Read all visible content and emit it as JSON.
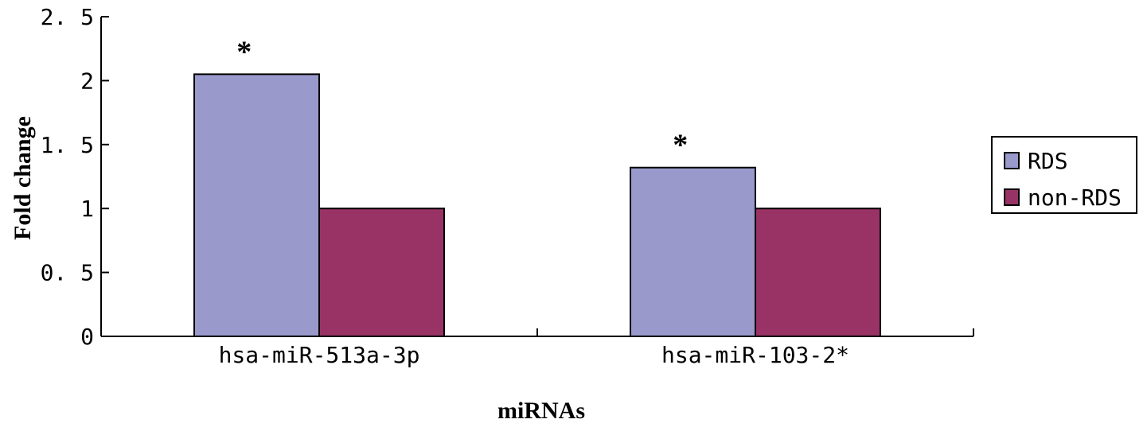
{
  "chart_data": {
    "type": "bar",
    "categories": [
      "hsa-miR-513a-3p",
      "hsa-miR-103-2*"
    ],
    "series": [
      {
        "name": "RDS",
        "values": [
          2.05,
          1.32
        ],
        "color": "#9999cc",
        "annotations": [
          "*",
          "*"
        ]
      },
      {
        "name": "non-RDS",
        "values": [
          1.0,
          1.0
        ],
        "color": "#993366",
        "annotations": [
          "",
          ""
        ]
      }
    ],
    "xlabel": "miRNAs",
    "ylabel": "Fold change",
    "ylim": [
      0,
      2.5
    ],
    "yticks": [
      0,
      0.5,
      1,
      1.5,
      2,
      2.5
    ],
    "ytick_labels": [
      "0",
      "0. 5",
      "1",
      "1. 5",
      "2",
      "2. 5"
    ],
    "grid": false,
    "legend_position": "right"
  }
}
